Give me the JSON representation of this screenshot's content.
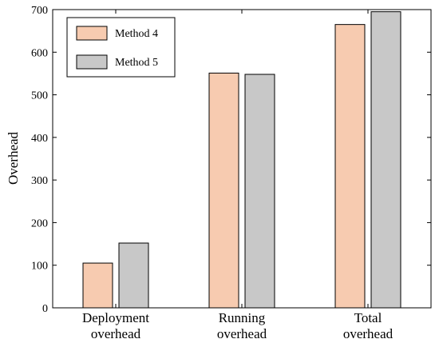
{
  "chart_data": {
    "type": "bar",
    "categories": [
      [
        "Deployment",
        "overhead"
      ],
      [
        "Running",
        "overhead"
      ],
      [
        "Total",
        "overhead"
      ]
    ],
    "series": [
      {
        "name": "Method 4",
        "color": "#f7cbb0",
        "values": [
          105,
          551,
          665
        ]
      },
      {
        "name": "Method 5",
        "color": "#c8c8c8",
        "values": [
          152,
          548,
          695
        ]
      }
    ],
    "ylabel": "Overhead",
    "xlabel": "",
    "ylim": [
      0,
      700
    ],
    "yticks": [
      0,
      100,
      200,
      300,
      400,
      500,
      600,
      700
    ],
    "grid": false,
    "legend_position": "top-left"
  }
}
